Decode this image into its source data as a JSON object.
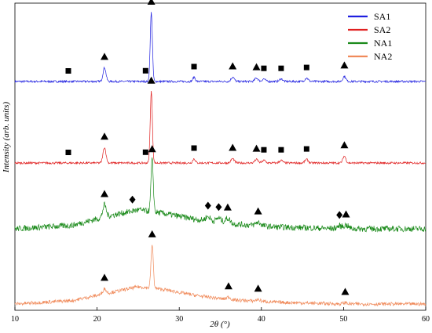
{
  "chart_data": {
    "type": "line",
    "xlabel": "2θ (°)",
    "ylabel": "Intensity (arb. units)",
    "xlim": [
      10,
      60
    ],
    "xticks": [
      10,
      20,
      30,
      40,
      50,
      60
    ],
    "legend_position": "top-right",
    "marker_legend": {
      "triangle": "▲",
      "square": "■",
      "diamond": "◆"
    },
    "series": [
      {
        "name": "SA1",
        "color": "#1f1fe0",
        "noise": 1.2,
        "background": [
          [
            10,
            0
          ],
          [
            60,
            0
          ]
        ],
        "peaks": [
          [
            20.9,
            16,
            0.18
          ],
          [
            26.6,
            80,
            0.13
          ],
          [
            31.8,
            5,
            0.15
          ],
          [
            36.5,
            5,
            0.2
          ],
          [
            39.4,
            4,
            0.2
          ],
          [
            40.3,
            3,
            0.2
          ],
          [
            42.4,
            3,
            0.2
          ],
          [
            45.5,
            4,
            0.2
          ],
          [
            50.1,
            6,
            0.18
          ]
        ],
        "markers": [
          {
            "x": 16.5,
            "symbol": "square"
          },
          {
            "x": 20.9,
            "symbol": "triangle"
          },
          {
            "x": 25.9,
            "symbol": "square"
          },
          {
            "x": 26.6,
            "symbol": "triangle"
          },
          {
            "x": 31.8,
            "symbol": "square"
          },
          {
            "x": 36.5,
            "symbol": "triangle"
          },
          {
            "x": 39.4,
            "symbol": "triangle"
          },
          {
            "x": 40.3,
            "symbol": "square"
          },
          {
            "x": 42.4,
            "symbol": "square"
          },
          {
            "x": 45.5,
            "symbol": "square"
          },
          {
            "x": 50.1,
            "symbol": "triangle"
          }
        ]
      },
      {
        "name": "SA2",
        "color": "#e02020",
        "noise": 1.2,
        "background": [
          [
            10,
            0
          ],
          [
            60,
            0
          ]
        ],
        "peaks": [
          [
            20.9,
            18,
            0.18
          ],
          [
            26.6,
            83,
            0.13
          ],
          [
            31.8,
            5,
            0.15
          ],
          [
            36.5,
            5,
            0.2
          ],
          [
            39.4,
            4,
            0.2
          ],
          [
            40.3,
            3,
            0.2
          ],
          [
            42.4,
            3,
            0.2
          ],
          [
            45.5,
            4,
            0.2
          ],
          [
            50.1,
            8,
            0.18
          ]
        ],
        "markers": [
          {
            "x": 16.5,
            "symbol": "square"
          },
          {
            "x": 20.9,
            "symbol": "triangle"
          },
          {
            "x": 25.9,
            "symbol": "square"
          },
          {
            "x": 26.6,
            "symbol": "triangle"
          },
          {
            "x": 31.8,
            "symbol": "square"
          },
          {
            "x": 36.5,
            "symbol": "triangle"
          },
          {
            "x": 39.4,
            "symbol": "triangle"
          },
          {
            "x": 40.3,
            "symbol": "square"
          },
          {
            "x": 42.4,
            "symbol": "square"
          },
          {
            "x": 45.5,
            "symbol": "square"
          },
          {
            "x": 50.1,
            "symbol": "triangle"
          }
        ]
      },
      {
        "name": "NA1",
        "color": "#1a8a1a",
        "noise": 3.5,
        "background": [
          [
            10,
            0
          ],
          [
            17,
            4
          ],
          [
            21,
            14
          ],
          [
            25,
            22
          ],
          [
            28,
            18
          ],
          [
            32,
            11
          ],
          [
            36,
            6
          ],
          [
            42,
            2
          ],
          [
            50,
            0
          ],
          [
            60,
            0
          ]
        ],
        "peaks": [
          [
            20.9,
            14,
            0.2
          ],
          [
            26.7,
            60,
            0.14
          ],
          [
            33.5,
            5,
            0.3
          ],
          [
            34.8,
            5,
            0.3
          ],
          [
            35.9,
            6,
            0.3
          ],
          [
            39.6,
            4,
            0.3
          ],
          [
            49.5,
            3,
            0.3
          ],
          [
            50.3,
            4,
            0.3
          ]
        ],
        "markers": [
          {
            "x": 20.9,
            "symbol": "triangle"
          },
          {
            "x": 24.3,
            "symbol": "diamond"
          },
          {
            "x": 26.7,
            "symbol": "triangle"
          },
          {
            "x": 33.5,
            "symbol": "diamond"
          },
          {
            "x": 34.8,
            "symbol": "diamond"
          },
          {
            "x": 35.9,
            "symbol": "triangle"
          },
          {
            "x": 39.6,
            "symbol": "triangle"
          },
          {
            "x": 49.5,
            "symbol": "diamond"
          },
          {
            "x": 50.3,
            "symbol": "triangle"
          }
        ]
      },
      {
        "name": "NA2",
        "color": "#f08a5a",
        "noise": 2.0,
        "background": [
          [
            10,
            0
          ],
          [
            17,
            4
          ],
          [
            21,
            12
          ],
          [
            25,
            20
          ],
          [
            28,
            17
          ],
          [
            32,
            10
          ],
          [
            36,
            5
          ],
          [
            42,
            2
          ],
          [
            50,
            0
          ],
          [
            60,
            0
          ]
        ],
        "peaks": [
          [
            20.9,
            6,
            0.2
          ],
          [
            26.7,
            50,
            0.14
          ],
          [
            36.0,
            3,
            0.25
          ],
          [
            39.6,
            2,
            0.25
          ],
          [
            50.2,
            1.5,
            0.25
          ]
        ],
        "markers": [
          {
            "x": 20.9,
            "symbol": "triangle"
          },
          {
            "x": 26.7,
            "symbol": "triangle"
          },
          {
            "x": 36.0,
            "symbol": "triangle"
          },
          {
            "x": 39.6,
            "symbol": "triangle"
          },
          {
            "x": 50.2,
            "symbol": "triangle"
          }
        ]
      }
    ]
  }
}
